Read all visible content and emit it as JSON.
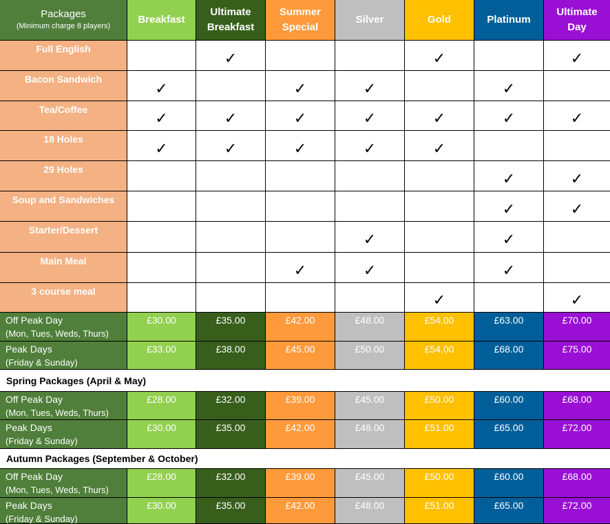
{
  "header": {
    "packages_title": "Packages",
    "packages_subtitle": "(Minimum charge 8 players)",
    "columns": [
      "Breakfast",
      "Ultimate\nBreakfast",
      "Summer\nSpecial",
      "Silver",
      "Gold",
      "Platinum",
      "Ultimate\nDay"
    ]
  },
  "colors": {
    "header_bg": "#4f7f3a",
    "feature_bg": "#f4b183",
    "breakfast": "#92d050",
    "ultimate_breakfast": "#375f1b",
    "summer_special": "#ff9a3c",
    "silver": "#bfbfbf",
    "gold": "#ffc000",
    "platinum": "#005f99",
    "ultimate_day": "#9a0fd4"
  },
  "tick_symbol": "✓",
  "features": [
    {
      "name": "Full English",
      "ticks": [
        false,
        true,
        false,
        false,
        true,
        false,
        true
      ]
    },
    {
      "name": "Bacon Sandwich",
      "ticks": [
        true,
        false,
        true,
        true,
        false,
        true,
        false
      ]
    },
    {
      "name": "Tea/Coffee",
      "ticks": [
        true,
        true,
        true,
        true,
        true,
        true,
        true
      ]
    },
    {
      "name": "18 Holes",
      "ticks": [
        true,
        true,
        true,
        true,
        true,
        false,
        false
      ]
    },
    {
      "name": "29 Holes",
      "ticks": [
        false,
        false,
        false,
        false,
        false,
        true,
        true
      ]
    },
    {
      "name": "Soup and Sandwiches",
      "ticks": [
        false,
        false,
        false,
        false,
        false,
        true,
        true
      ]
    },
    {
      "name": "Starter/Dessert",
      "ticks": [
        false,
        false,
        false,
        true,
        false,
        true,
        false
      ]
    },
    {
      "name": "Main Meal",
      "ticks": [
        false,
        false,
        true,
        true,
        false,
        true,
        false
      ]
    },
    {
      "name": "3 course meal",
      "ticks": [
        false,
        false,
        false,
        false,
        true,
        false,
        true
      ]
    }
  ],
  "summer_prices": [
    {
      "label": "Off Peak Day",
      "sub": "(Mon, Tues, Weds, Thurs)",
      "prices": [
        "£30.00",
        "£35.00",
        "£42.00",
        "£48.00",
        "£54.00",
        "£63.00",
        "£70.00"
      ]
    },
    {
      "label": "Peak Days",
      "sub": "(Friday & Sunday)",
      "prices": [
        "£33.00",
        "£38.00",
        "£45.00",
        "£50.00",
        "£54.00",
        "£68.00",
        "£75.00"
      ]
    }
  ],
  "spring": {
    "title": "Spring Packages (April & May)",
    "rows": [
      {
        "label": "Off Peak Day",
        "sub": "(Mon, Tues, Weds, Thurs)",
        "prices": [
          "£28.00",
          "£32.00",
          "£39.00",
          "£45.00",
          "£50.00",
          "£60.00",
          "£68.00"
        ]
      },
      {
        "label": "Peak Days",
        "sub": "(Friday & Sunday)",
        "prices": [
          "£30.00",
          "£35.00",
          "£42.00",
          "£48.00",
          "£51.00",
          "£65.00",
          "£72.00"
        ]
      }
    ]
  },
  "autumn": {
    "title": "Autumn Packages (September & October)",
    "rows": [
      {
        "label": "Off Peak Day",
        "sub": "(Mon, Tues, Weds, Thurs)",
        "prices": [
          "£28.00",
          "£32.00",
          "£39.00",
          "£45.00",
          "£50.00",
          "£60.00",
          "£68.00"
        ]
      },
      {
        "label": "Peak Days",
        "sub": "(Friday & Sunday)",
        "prices": [
          "£30.00",
          "£35.00",
          "£42.00",
          "£48.00",
          "£51.00",
          "£65.00",
          "£72.00"
        ]
      }
    ]
  }
}
